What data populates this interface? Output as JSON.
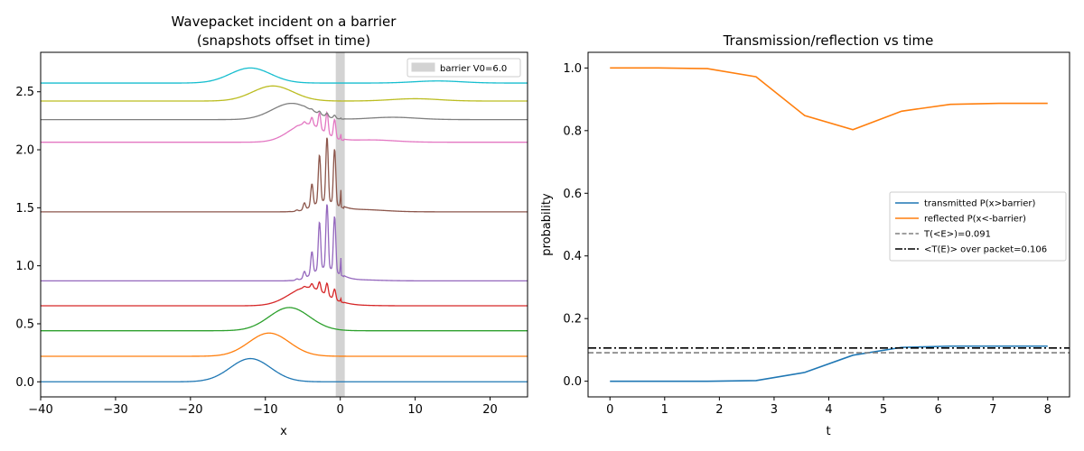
{
  "figure": {
    "charts": [
      {
        "type": "line",
        "title_line1": "Wavepacket incident on a barrier",
        "title_line2": "(snapshots offset in time)",
        "xlabel": "x",
        "ylabel": "",
        "xlim": [
          -40,
          25
        ],
        "ylim": [
          -0.13,
          2.84
        ],
        "xticks": [
          -40,
          -30,
          -20,
          -10,
          0,
          10,
          20
        ],
        "yticks": [
          0.0,
          0.5,
          1.0,
          1.5,
          2.0,
          2.5
        ],
        "xtick_labels": [
          "−40",
          "−30",
          "−20",
          "−10",
          "0",
          "10",
          "20"
        ],
        "ytick_labels": [
          "0.0",
          "0.5",
          "1.0",
          "1.5",
          "2.0",
          "2.5"
        ],
        "barrier": {
          "x0": -0.6,
          "x1": 0.6,
          "color": "#d3d3d3",
          "label": "barrier V0=6.0"
        },
        "legend_position": "upper right",
        "series": [
          {
            "color": "#1f77b4",
            "offset": 0.0,
            "x0": -12.0,
            "amp": 0.2,
            "sigma": 2.7,
            "refl_amp": 0.0,
            "trans_center": 0,
            "trans_amp": 0.0
          },
          {
            "color": "#ff7f0e",
            "offset": 0.22,
            "x0": -9.5,
            "amp": 0.2,
            "sigma": 2.7,
            "refl_amp": 0.0,
            "trans_center": 0,
            "trans_amp": 0.0
          },
          {
            "color": "#2ca02c",
            "offset": 0.44,
            "x0": -6.8,
            "amp": 0.2,
            "sigma": 2.7,
            "refl_amp": 0.0,
            "trans_center": 0,
            "trans_amp": 0.0
          },
          {
            "color": "#d62728",
            "offset": 0.655,
            "x0": -4.3,
            "amp": 0.16,
            "sigma": 2.5,
            "refl_amp": 0.1,
            "trans_center": 0.5,
            "trans_amp": 0.005
          },
          {
            "color": "#9467bd",
            "offset": 0.87,
            "x0": -2.0,
            "amp": 0.12,
            "sigma": 1.6,
            "refl_amp": 0.55,
            "trans_center": 1.5,
            "trans_amp": 0.01
          },
          {
            "color": "#8c564b",
            "offset": 1.465,
            "x0": -2.0,
            "amp": 0.1,
            "sigma": 1.6,
            "refl_amp": 0.55,
            "trans_center": 2.5,
            "trans_amp": 0.02
          },
          {
            "color": "#e377c2",
            "offset": 2.065,
            "x0": -4.5,
            "amp": 0.16,
            "sigma": 2.3,
            "refl_amp": 0.18,
            "trans_center": 4.0,
            "trans_amp": 0.02
          },
          {
            "color": "#7f7f7f",
            "offset": 2.26,
            "x0": -6.5,
            "amp": 0.14,
            "sigma": 2.6,
            "refl_amp": 0.03,
            "trans_center": 7.0,
            "trans_amp": 0.02
          },
          {
            "color": "#bcbd22",
            "offset": 2.42,
            "x0": -9.0,
            "amp": 0.13,
            "sigma": 2.7,
            "refl_amp": 0.0,
            "trans_center": 10.0,
            "trans_amp": 0.02
          },
          {
            "color": "#17becf",
            "offset": 2.575,
            "x0": -12.0,
            "amp": 0.13,
            "sigma": 2.7,
            "refl_amp": 0.0,
            "trans_center": 13.0,
            "trans_amp": 0.018
          }
        ]
      },
      {
        "type": "line",
        "title": "Transmission/reflection vs time",
        "xlabel": "t",
        "ylabel": "probability",
        "xlim": [
          -0.4,
          8.4
        ],
        "ylim": [
          -0.05,
          1.05
        ],
        "xticks": [
          0,
          1,
          2,
          3,
          4,
          5,
          6,
          7,
          8
        ],
        "yticks": [
          0.0,
          0.2,
          0.4,
          0.6,
          0.8,
          1.0
        ],
        "xtick_labels": [
          "0",
          "1",
          "2",
          "3",
          "4",
          "5",
          "6",
          "7",
          "8"
        ],
        "ytick_labels": [
          "0.0",
          "0.2",
          "0.4",
          "0.6",
          "0.8",
          "1.0"
        ],
        "legend_position": "center right",
        "series": [
          {
            "name": "transmitted P(x>barrier)",
            "color": "#1f77b4",
            "style": "solid",
            "x": [
              0,
              0.89,
              1.78,
              2.67,
              3.56,
              4.44,
              5.33,
              6.22,
              7.11,
              8.0
            ],
            "values": [
              0.0,
              0.0,
              0.0,
              0.002,
              0.028,
              0.083,
              0.108,
              0.112,
              0.112,
              0.112
            ]
          },
          {
            "name": "reflected P(x<-barrier)",
            "color": "#ff7f0e",
            "style": "solid",
            "x": [
              0,
              0.89,
              1.78,
              2.67,
              3.56,
              4.44,
              5.33,
              6.22,
              7.11,
              8.0
            ],
            "values": [
              1.0,
              1.0,
              0.998,
              0.972,
              0.848,
              0.803,
              0.862,
              0.884,
              0.887,
              0.887
            ]
          },
          {
            "name": "T(<E>)=0.091",
            "color": "#808080",
            "style": "dashed",
            "hline": 0.091
          },
          {
            "name": "<T(E)> over packet=0.106",
            "color": "#000000",
            "style": "dashdot",
            "hline": 0.106
          }
        ]
      }
    ]
  }
}
